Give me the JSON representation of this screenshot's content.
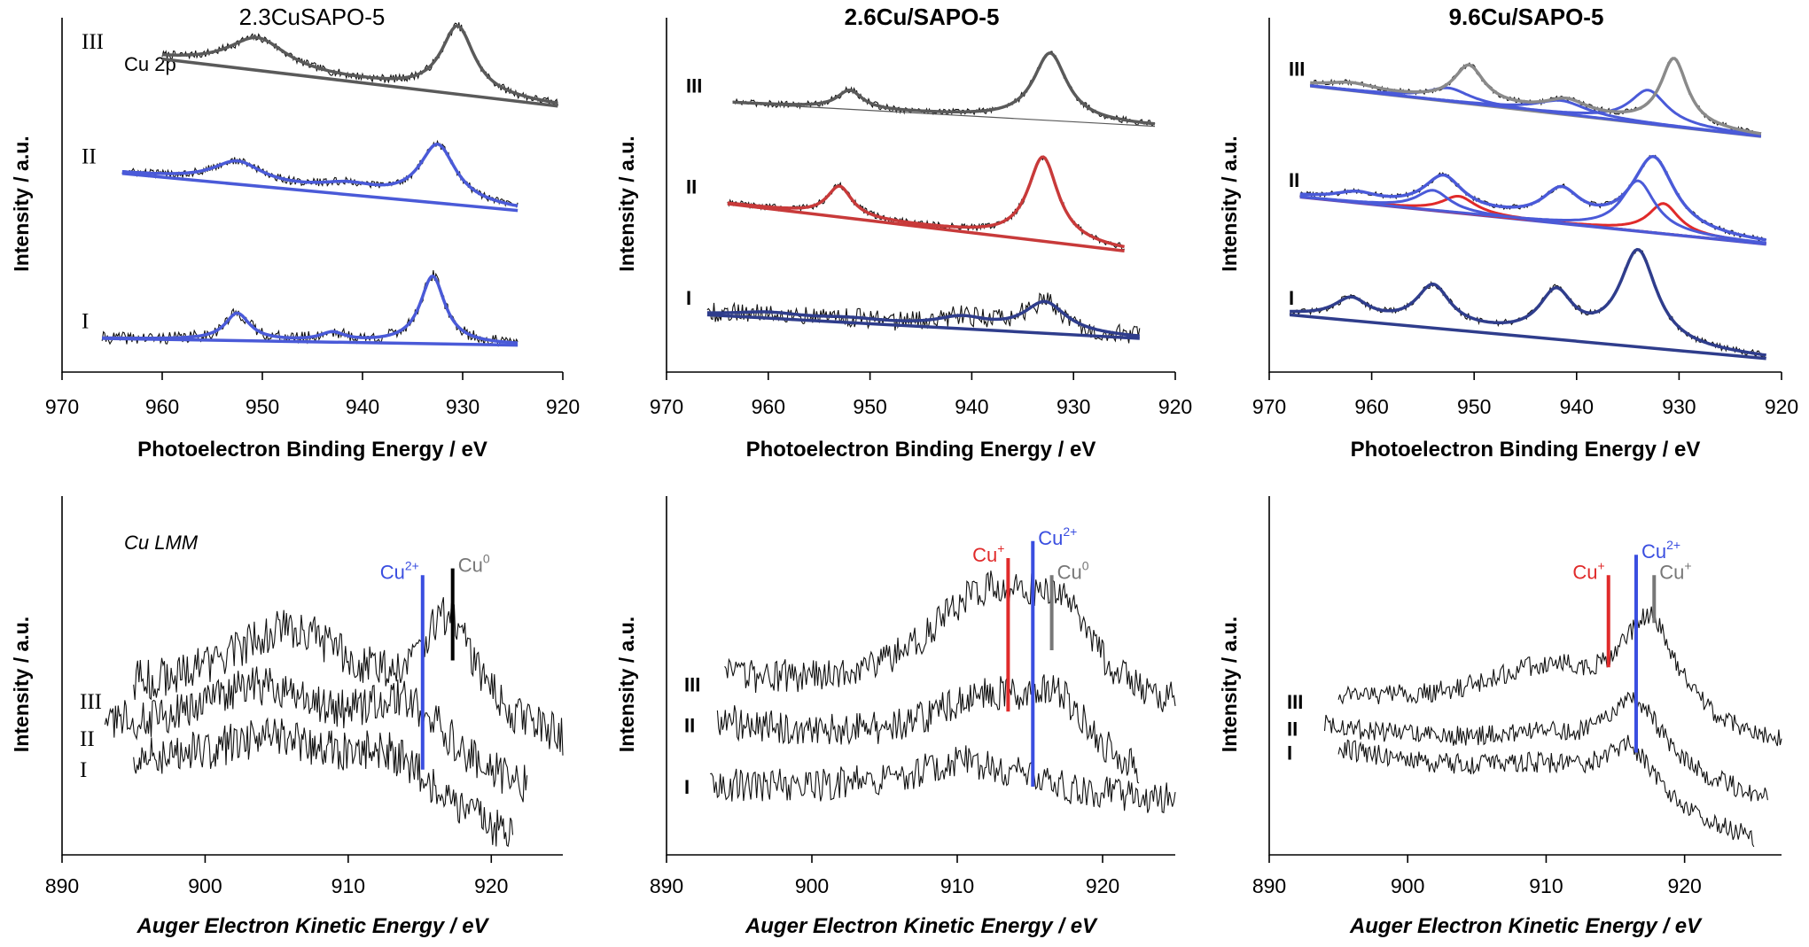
{
  "chart_data": [
    {
      "type": "line",
      "title": "2.3CuSAPO-5",
      "title_bold": false,
      "xlabel": "Photoelectron Binding Energy / eV",
      "xlabel_italic": false,
      "ylabel": "Intensity / a.u.",
      "xlim": [
        970,
        920
      ],
      "xticks": [
        "970",
        "960",
        "950",
        "940",
        "930",
        "920"
      ],
      "annotation": "Cu 2p",
      "trace_labels": [
        "III",
        "II",
        "I"
      ],
      "trace_label_style": "serif",
      "traces": [
        {
          "label": "III",
          "color": "#5a5a5a",
          "x": [
            960,
            920.5
          ],
          "offset": 0.93,
          "end_offset": 0.79,
          "noise": 0.012,
          "peaks": [
            {
              "center": 950.5,
              "height": 0.095,
              "width": 3.6
            },
            {
              "center": 930.5,
              "height": 0.2,
              "width": 2.0
            }
          ],
          "components": []
        },
        {
          "label": "II",
          "color": "#4a5ad8",
          "x": [
            964,
            924.5
          ],
          "offset": 0.59,
          "end_offset": 0.48,
          "noise": 0.012,
          "peaks": [
            {
              "center": 952.5,
              "height": 0.065,
              "width": 3.0
            },
            {
              "center": 941.5,
              "height": 0.025,
              "width": 3.5
            },
            {
              "center": 932.5,
              "height": 0.17,
              "width": 2.2
            }
          ],
          "components": []
        },
        {
          "label": "I",
          "color": "#4a5ad8",
          "x": [
            966,
            924.5
          ],
          "offset": 0.1,
          "end_offset": 0.08,
          "noise": 0.018,
          "peaks": [
            {
              "center": 952.5,
              "height": 0.08,
              "width": 1.5
            },
            {
              "center": 943,
              "height": 0.025,
              "width": 1.5
            },
            {
              "center": 933,
              "height": 0.2,
              "width": 1.5
            }
          ],
          "components": []
        }
      ],
      "markers": []
    },
    {
      "type": "line",
      "title": "2.6Cu/SAPO-5",
      "title_bold": true,
      "xlabel": "Photoelectron Binding Energy / eV",
      "xlabel_italic": false,
      "ylabel": "Intensity / a.u.",
      "xlim": [
        970,
        920
      ],
      "xticks": [
        "970",
        "960",
        "950",
        "940",
        "930",
        "920"
      ],
      "annotation": "",
      "trace_labels": [
        "III",
        "II",
        "I"
      ],
      "trace_label_style": "bold",
      "traces": [
        {
          "label": "III",
          "color": "#5a5a5a",
          "x": [
            963.5,
            922
          ],
          "offset": 0.8,
          "end_offset": 0.73,
          "noise": 0.01,
          "peaks": [
            {
              "center": 952,
              "height": 0.055,
              "width": 1.5
            },
            {
              "center": 932.3,
              "height": 0.2,
              "width": 2.0
            }
          ],
          "components": []
        },
        {
          "label": "II",
          "color": "#c83a3a",
          "x": [
            964,
            925
          ],
          "offset": 0.5,
          "end_offset": 0.36,
          "noise": 0.01,
          "peaks": [
            {
              "center": 953,
              "height": 0.09,
              "width": 1.5
            },
            {
              "center": 933,
              "height": 0.25,
              "width": 1.8
            }
          ],
          "components": []
        },
        {
          "label": "I",
          "color": "#2f3d8c",
          "x": [
            966,
            923.5
          ],
          "offset": 0.17,
          "end_offset": 0.1,
          "noise": 0.03,
          "peaks": [
            {
              "center": 960,
              "height": 0.015,
              "width": 4
            },
            {
              "center": 952,
              "height": 0.01,
              "width": 4
            },
            {
              "center": 941,
              "height": 0.03,
              "width": 3
            },
            {
              "center": 932.8,
              "height": 0.09,
              "width": 2.5
            }
          ],
          "components": []
        }
      ],
      "markers": []
    },
    {
      "type": "line",
      "title": "9.6Cu/SAPO-5",
      "title_bold": true,
      "xlabel": "Photoelectron Binding Energy / eV",
      "xlabel_italic": false,
      "ylabel": "Intensity / a.u.",
      "xlim": [
        970,
        920
      ],
      "xticks": [
        "970",
        "960",
        "950",
        "940",
        "930",
        "920"
      ],
      "annotation": "",
      "trace_labels": [
        "III",
        "II",
        "I"
      ],
      "trace_label_style": "bold",
      "traces": [
        {
          "label": "III",
          "color": "#8a8a8a",
          "x": [
            966,
            922
          ],
          "offset": 0.85,
          "end_offset": 0.7,
          "noise": 0.008,
          "peaks": [
            {
              "center": 962,
              "height": 0.02,
              "width": 3
            },
            {
              "center": 950.5,
              "height": 0.11,
              "width": 1.8
            },
            {
              "center": 941,
              "height": 0.04,
              "width": 2.5
            },
            {
              "center": 930.5,
              "height": 0.2,
              "width": 1.6
            }
          ],
          "components": [
            {
              "color": "#4a5ad8",
              "center": 952.5,
              "height": 0.04,
              "width": 2.5
            },
            {
              "color": "#4a5ad8",
              "center": 941.5,
              "height": 0.04,
              "width": 3
            },
            {
              "color": "#4a5ad8",
              "center": 933,
              "height": 0.1,
              "width": 2.2
            }
          ]
        },
        {
          "label": "II",
          "color": "#4a5ad8",
          "x": [
            967,
            921.5
          ],
          "offset": 0.52,
          "end_offset": 0.38,
          "noise": 0.008,
          "peaks": [
            {
              "center": 961.5,
              "height": 0.025,
              "width": 2.5
            },
            {
              "center": 953,
              "height": 0.1,
              "width": 2.3
            },
            {
              "center": 941.5,
              "height": 0.09,
              "width": 2.2
            },
            {
              "center": 932.5,
              "height": 0.22,
              "width": 2.5
            }
          ],
          "components": [
            {
              "color": "#e02a2a",
              "center": 951.5,
              "height": 0.05,
              "width": 2
            },
            {
              "color": "#e02a2a",
              "center": 931.5,
              "height": 0.09,
              "width": 1.8
            },
            {
              "color": "#4a5ad8",
              "center": 954,
              "height": 0.06,
              "width": 2
            },
            {
              "color": "#4a5ad8",
              "center": 934,
              "height": 0.15,
              "width": 2
            }
          ]
        },
        {
          "label": "I",
          "color": "#2f3d8c",
          "x": [
            968,
            921.5
          ],
          "offset": 0.17,
          "end_offset": 0.04,
          "noise": 0.01,
          "peaks": [
            {
              "center": 962,
              "height": 0.06,
              "width": 2
            },
            {
              "center": 954,
              "height": 0.12,
              "width": 2
            },
            {
              "center": 942,
              "height": 0.13,
              "width": 2
            },
            {
              "center": 934,
              "height": 0.28,
              "width": 2.2
            }
          ],
          "components": []
        }
      ],
      "markers": []
    },
    {
      "type": "line",
      "title": "",
      "title_bold": false,
      "xlabel": "Auger Electron Kinetic Energy / eV",
      "xlabel_italic": true,
      "ylabel": "Intensity / a.u.",
      "xlim": [
        890,
        925
      ],
      "xticks": [
        "890",
        "900",
        "910",
        "920"
      ],
      "annotation": "Cu LMM",
      "trace_labels": [
        "III",
        "II",
        "I"
      ],
      "trace_label_style": "serif",
      "traces": [
        {
          "label": "III",
          "color": "#000000",
          "x": [
            895,
            925
          ],
          "offset": 0.45,
          "end_offset": 0.3,
          "noise": 0.06,
          "peaks": [
            {
              "center": 906,
              "height": 0.25,
              "width": 6
            },
            {
              "center": 917,
              "height": 0.3,
              "width": 2.5
            }
          ],
          "components": []
        },
        {
          "label": "II",
          "color": "#000000",
          "x": [
            893,
            922.5
          ],
          "offset": 0.34,
          "end_offset": 0.15,
          "noise": 0.06,
          "peaks": [
            {
              "center": 904,
              "height": 0.2,
              "width": 6
            },
            {
              "center": 914,
              "height": 0.2,
              "width": 4
            }
          ],
          "components": []
        },
        {
          "label": "I",
          "color": "#000000",
          "x": [
            895,
            921.5
          ],
          "offset": 0.25,
          "end_offset": 0.02,
          "noise": 0.06,
          "peaks": [
            {
              "center": 905,
              "height": 0.15,
              "width": 6
            },
            {
              "center": 913,
              "height": 0.15,
              "width": 4
            }
          ],
          "components": []
        }
      ],
      "markers": [
        {
          "label": "Cu",
          "sup": "2+",
          "color": "#3a4ee0",
          "x": 915.2,
          "y_top": 0.82,
          "y_bottom": 0.25,
          "label_side": "left"
        },
        {
          "label": "Cu",
          "sup": "0",
          "color": "#777777",
          "x": 917.3,
          "y_top": 0.84,
          "y_bottom": 0.57,
          "label_side": "right",
          "line_color": "#000000"
        }
      ]
    },
    {
      "type": "line",
      "title": "",
      "title_bold": false,
      "xlabel": "Auger Electron Kinetic Energy / eV",
      "xlabel_italic": true,
      "ylabel": "Intensity / a.u.",
      "xlim": [
        890,
        925
      ],
      "xticks": [
        "890",
        "900",
        "910",
        "920"
      ],
      "annotation": "",
      "trace_labels": [
        "III",
        "II",
        "I"
      ],
      "trace_label_style": "bold",
      "traces": [
        {
          "label": "III",
          "color": "#000000",
          "x": [
            894,
            925
          ],
          "offset": 0.5,
          "end_offset": 0.4,
          "noise": 0.05,
          "peaks": [
            {
              "center": 912,
              "height": 0.3,
              "width": 5
            },
            {
              "center": 917,
              "height": 0.2,
              "width": 2.5
            }
          ],
          "components": []
        },
        {
          "label": "II",
          "color": "#000000",
          "x": [
            893.5,
            922.5
          ],
          "offset": 0.38,
          "end_offset": 0.2,
          "noise": 0.05,
          "peaks": [
            {
              "center": 912,
              "height": 0.18,
              "width": 5
            },
            {
              "center": 917,
              "height": 0.15,
              "width": 2.5
            }
          ],
          "components": []
        },
        {
          "label": "I",
          "color": "#000000",
          "x": [
            893,
            925
          ],
          "offset": 0.2,
          "end_offset": 0.15,
          "noise": 0.05,
          "peaks": [
            {
              "center": 911,
              "height": 0.1,
              "width": 5
            }
          ],
          "components": []
        }
      ],
      "markers": [
        {
          "label": "Cu",
          "sup": "+",
          "color": "#e02a2a",
          "x": 913.5,
          "y_top": 0.87,
          "y_bottom": 0.42,
          "label_side": "left"
        },
        {
          "label": "Cu",
          "sup": "2+",
          "color": "#3a4ee0",
          "x": 915.2,
          "y_top": 0.92,
          "y_bottom": 0.2,
          "label_side": "right"
        },
        {
          "label": "Cu",
          "sup": "0",
          "color": "#777777",
          "x": 916.5,
          "y_top": 0.82,
          "y_bottom": 0.6,
          "label_side": "right"
        }
      ]
    },
    {
      "type": "line",
      "title": "",
      "title_bold": false,
      "xlabel": "Auger Electron Kinetic Energy / eV",
      "xlabel_italic": true,
      "ylabel": "Intensity / a.u.",
      "xlim": [
        890,
        927
      ],
      "xticks": [
        "890",
        "900",
        "910",
        "920"
      ],
      "annotation": "",
      "trace_labels": [
        "III",
        "II",
        "I"
      ],
      "trace_label_style": "bold",
      "traces": [
        {
          "label": "III",
          "color": "#000000",
          "x": [
            895,
            927
          ],
          "offset": 0.45,
          "end_offset": 0.3,
          "noise": 0.03,
          "peaks": [
            {
              "center": 910,
              "height": 0.15,
              "width": 6
            },
            {
              "center": 917.5,
              "height": 0.3,
              "width": 2.5
            }
          ],
          "components": []
        },
        {
          "label": "II",
          "color": "#000000",
          "x": [
            894,
            926
          ],
          "offset": 0.37,
          "end_offset": 0.15,
          "noise": 0.03,
          "peaks": [
            {
              "center": 910,
              "height": 0.08,
              "width": 6
            },
            {
              "center": 916.5,
              "height": 0.2,
              "width": 2.5
            }
          ],
          "components": []
        },
        {
          "label": "I",
          "color": "#000000",
          "x": [
            895,
            925
          ],
          "offset": 0.3,
          "end_offset": 0.03,
          "noise": 0.03,
          "peaks": [
            {
              "center": 910,
              "height": 0.08,
              "width": 6
            },
            {
              "center": 916,
              "height": 0.17,
              "width": 2.5
            }
          ],
          "components": []
        }
      ],
      "markers": [
        {
          "label": "Cu",
          "sup": "+",
          "color": "#e02a2a",
          "x": 914.5,
          "y_top": 0.82,
          "y_bottom": 0.55,
          "label_side": "left"
        },
        {
          "label": "Cu",
          "sup": "2+",
          "color": "#3a4ee0",
          "x": 916.5,
          "y_top": 0.88,
          "y_bottom": 0.3,
          "label_side": "right"
        },
        {
          "label": "Cu",
          "sup": "+",
          "color": "#777777",
          "x": 917.8,
          "y_top": 0.82,
          "y_bottom": 0.68,
          "label_side": "right"
        }
      ]
    }
  ]
}
